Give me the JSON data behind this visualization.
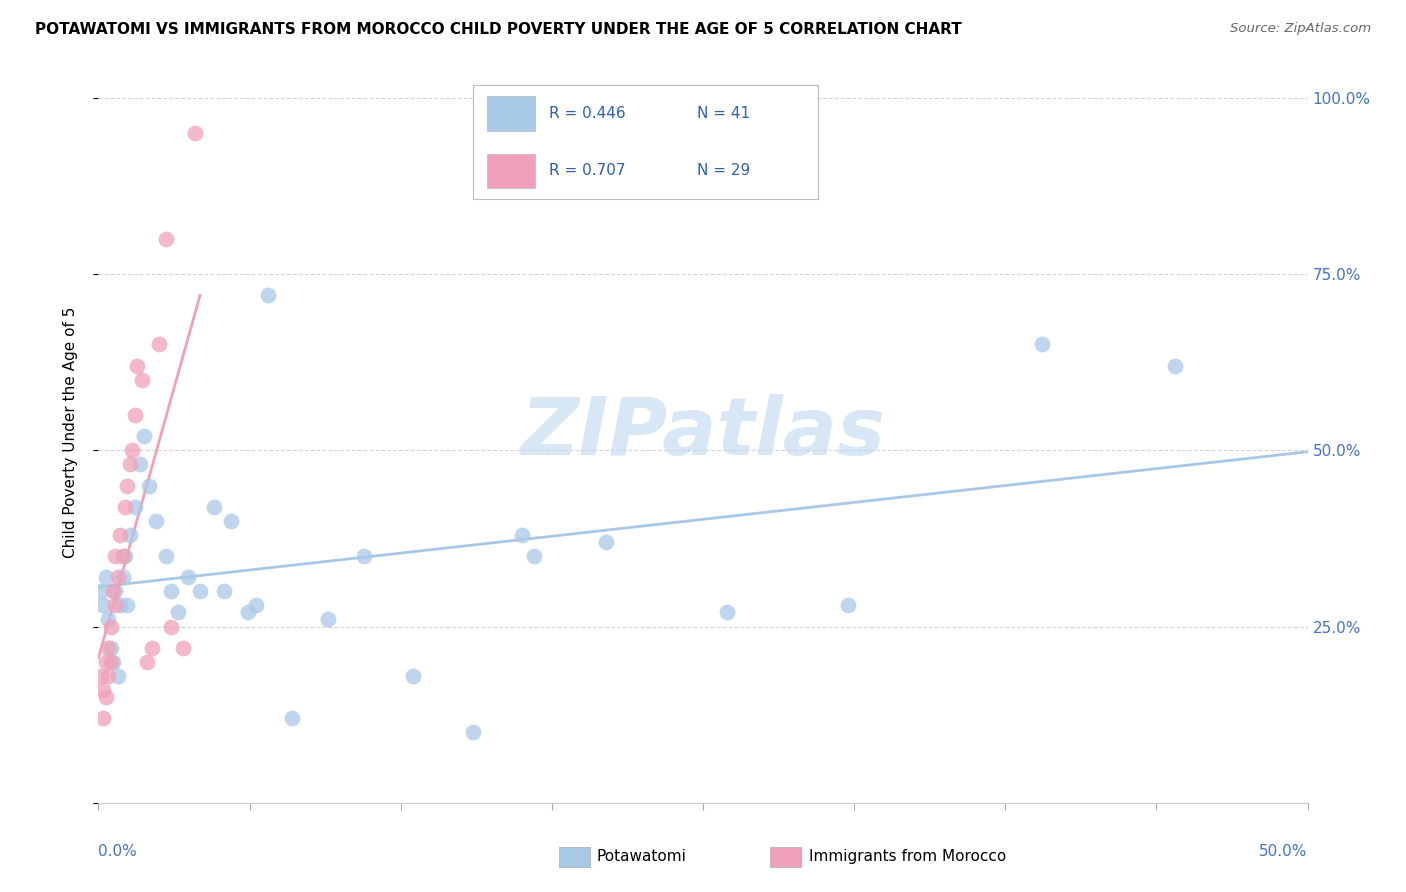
{
  "title": "POTAWATOMI VS IMMIGRANTS FROM MOROCCO CHILD POVERTY UNDER THE AGE OF 5 CORRELATION CHART",
  "source": "Source: ZipAtlas.com",
  "ylabel": "Child Poverty Under the Age of 5",
  "legend_label1": "Potawatomi",
  "legend_label2": "Immigrants from Morocco",
  "watermark": "ZIPatlas",
  "color_blue": "#A8C8E8",
  "color_pink": "#F0A0B8",
  "xlim": [
    0,
    0.5
  ],
  "ylim": [
    0,
    1.05
  ],
  "potawatomi_x": [
    0.001,
    0.002,
    0.003,
    0.004,
    0.005,
    0.006,
    0.007,
    0.008,
    0.009,
    0.01,
    0.011,
    0.012,
    0.013,
    0.015,
    0.017,
    0.019,
    0.021,
    0.024,
    0.028,
    0.03,
    0.033,
    0.037,
    0.042,
    0.048,
    0.055,
    0.062,
    0.07,
    0.08,
    0.095,
    0.11,
    0.13,
    0.155,
    0.18,
    0.21,
    0.26,
    0.31,
    0.39,
    0.445,
    0.065,
    0.175,
    0.052
  ],
  "potawatomi_y": [
    0.3,
    0.28,
    0.32,
    0.26,
    0.22,
    0.2,
    0.3,
    0.18,
    0.28,
    0.32,
    0.35,
    0.28,
    0.38,
    0.42,
    0.48,
    0.52,
    0.45,
    0.4,
    0.35,
    0.3,
    0.27,
    0.32,
    0.3,
    0.42,
    0.4,
    0.27,
    0.72,
    0.12,
    0.26,
    0.35,
    0.18,
    0.1,
    0.35,
    0.37,
    0.27,
    0.28,
    0.65,
    0.62,
    0.28,
    0.38,
    0.3
  ],
  "morocco_x": [
    0.001,
    0.002,
    0.002,
    0.003,
    0.003,
    0.004,
    0.004,
    0.005,
    0.005,
    0.006,
    0.007,
    0.007,
    0.008,
    0.009,
    0.01,
    0.011,
    0.012,
    0.013,
    0.014,
    0.015,
    0.016,
    0.018,
    0.02,
    0.022,
    0.025,
    0.028,
    0.03,
    0.035,
    0.04
  ],
  "morocco_y": [
    0.18,
    0.12,
    0.16,
    0.15,
    0.2,
    0.18,
    0.22,
    0.2,
    0.25,
    0.3,
    0.28,
    0.35,
    0.32,
    0.38,
    0.35,
    0.42,
    0.45,
    0.48,
    0.5,
    0.55,
    0.62,
    0.6,
    0.2,
    0.22,
    0.65,
    0.8,
    0.25,
    0.22,
    0.95
  ]
}
